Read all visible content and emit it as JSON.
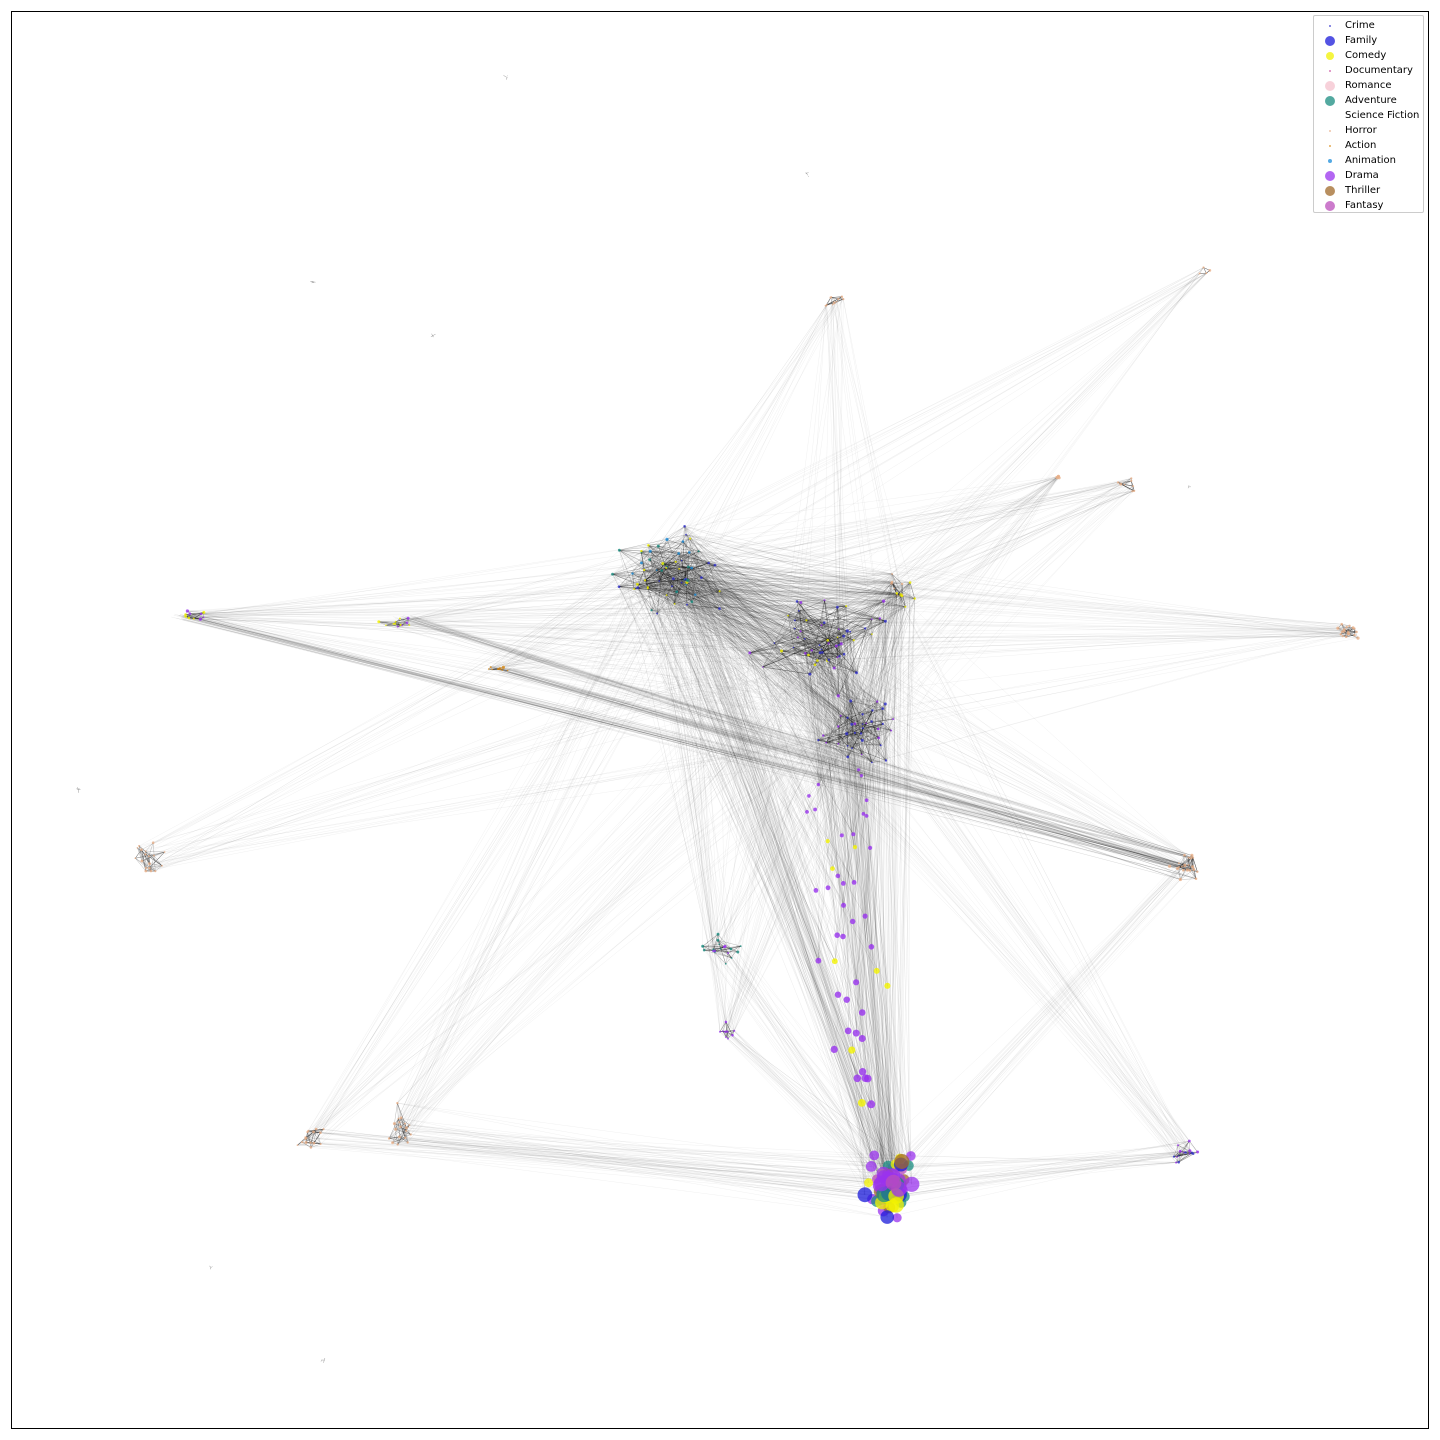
{
  "legend": {
    "items": [
      {
        "label": "Crime",
        "color": "#3333cc",
        "marker": "tiny"
      },
      {
        "label": "Family",
        "color": "#1a1ad9",
        "marker": "large"
      },
      {
        "label": "Comedy",
        "color": "#f2f200",
        "marker": "medium"
      },
      {
        "label": "Documentary",
        "color": "#c94fa0",
        "marker": "tiny"
      },
      {
        "label": "Romance",
        "color": "#f4c2cd",
        "marker": "large"
      },
      {
        "label": "Adventure",
        "color": "#1a8c80",
        "marker": "large"
      },
      {
        "label": "Science Fiction",
        "color": "#ffffff",
        "marker": "none"
      },
      {
        "label": "Horror",
        "color": "#e8b08a",
        "marker": "tiny"
      },
      {
        "label": "Action",
        "color": "#d98c1a",
        "marker": "tiny"
      },
      {
        "label": "Animation",
        "color": "#1a8cd9",
        "marker": "small"
      },
      {
        "label": "Drama",
        "color": "#9933ee",
        "marker": "large"
      },
      {
        "label": "Thriller",
        "color": "#a0692a",
        "marker": "large"
      },
      {
        "label": "Fantasy",
        "color": "#bb4fbb",
        "marker": "large"
      }
    ]
  },
  "graph": {
    "edge_color": "#000000",
    "node_colors": {
      "Crime": "#3333cc",
      "Family": "#1a1ad9",
      "Comedy": "#f2f200",
      "Documentary": "#c94fa0",
      "Romance": "#f4c2cd",
      "Adventure": "#1a8c80",
      "Horror": "#e8b08a",
      "Action": "#d98c1a",
      "Animation": "#1a8cd9",
      "Drama": "#9933ee",
      "Thriller": "#a0692a",
      "Fantasy": "#bb4fbb"
    }
  }
}
